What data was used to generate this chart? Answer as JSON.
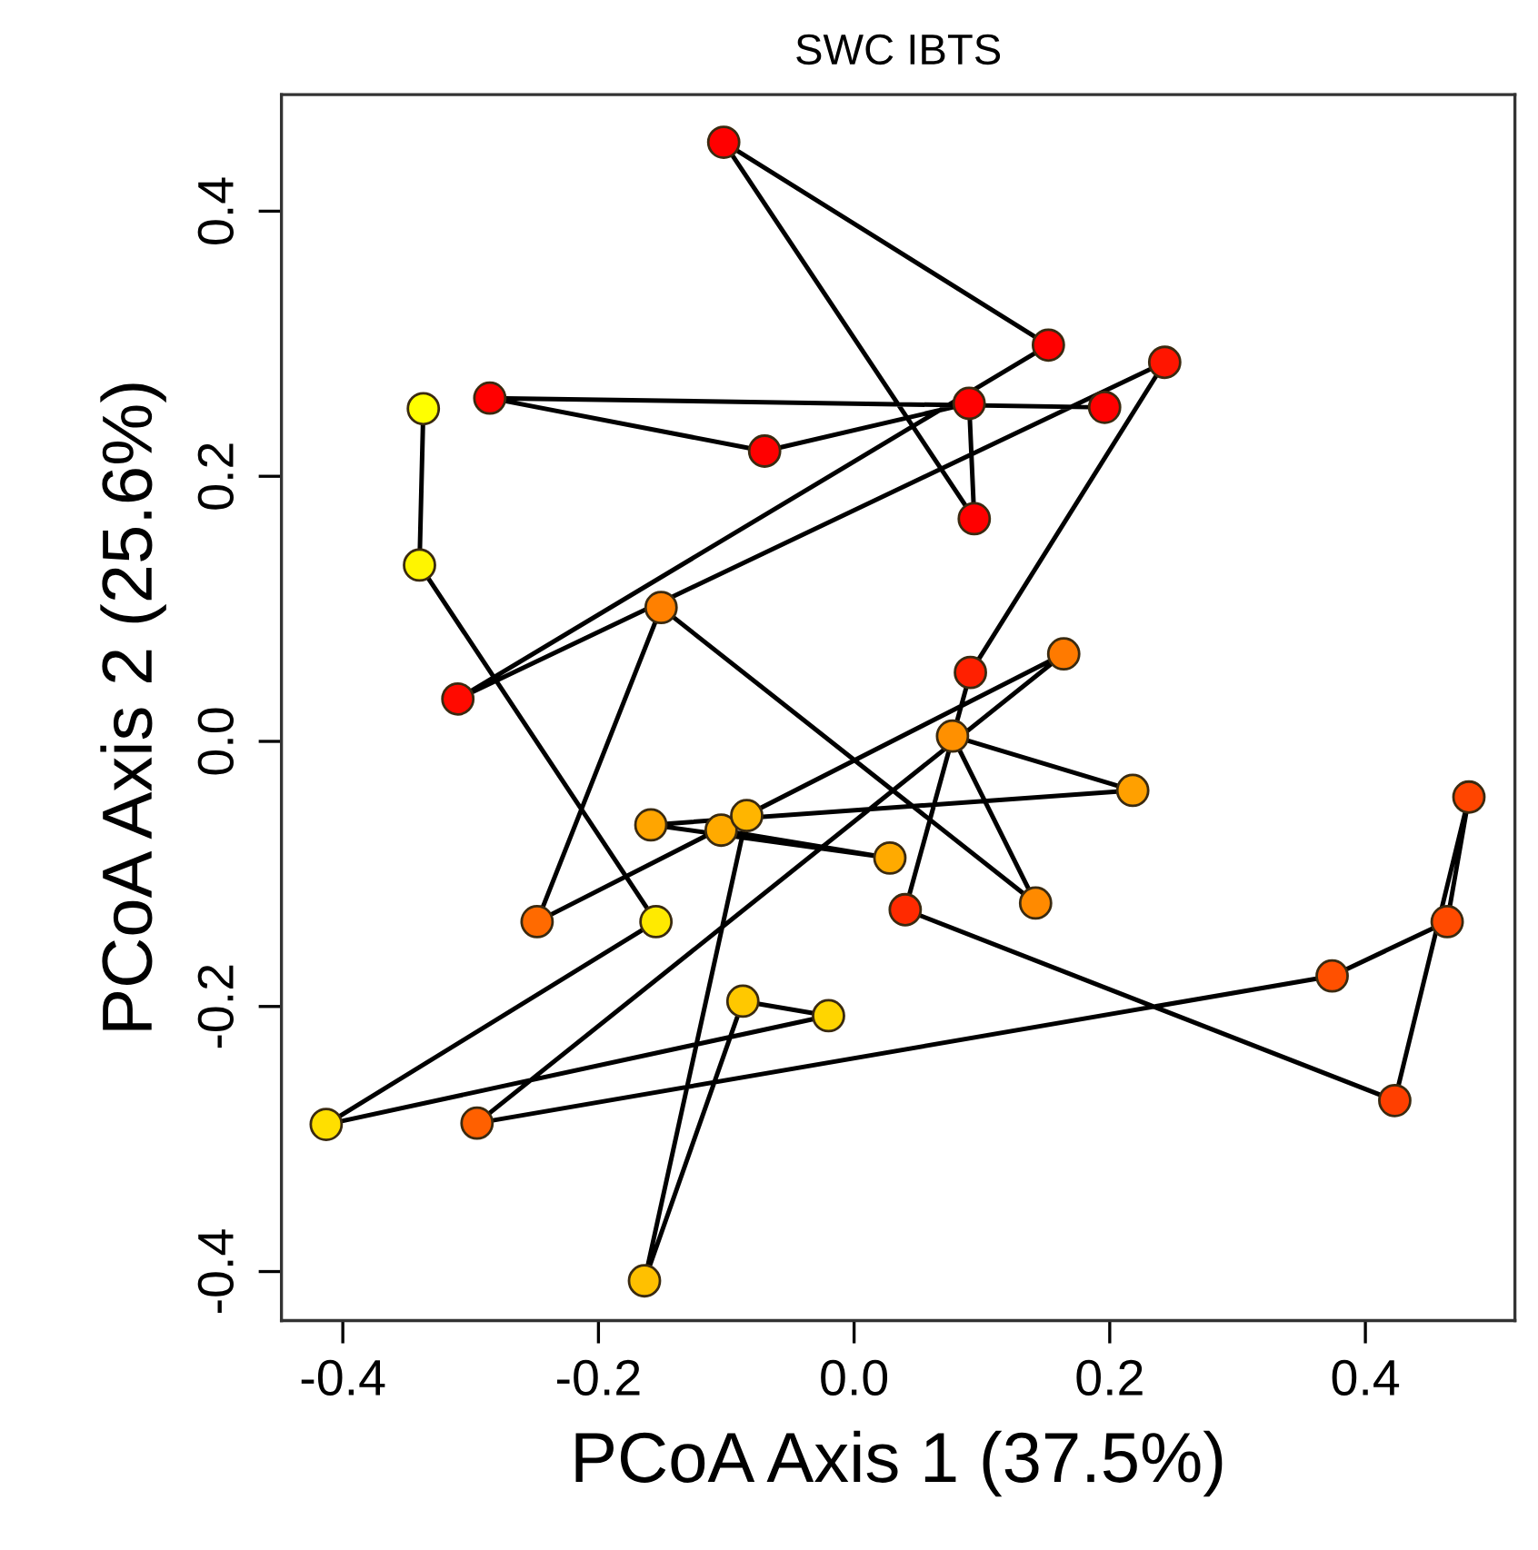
{
  "chart_data": {
    "type": "line",
    "title": "SWC IBTS",
    "xlabel": "PCoA Axis 1 (37.5%)",
    "ylabel": "PCoA Axis 2 (25.6%)",
    "xlim": [
      -0.448,
      0.517
    ],
    "ylim": [
      -0.437,
      0.488
    ],
    "xticks": [
      {
        "value": -0.4,
        "label": "-0.4"
      },
      {
        "value": -0.2,
        "label": "-0.2"
      },
      {
        "value": 0.0,
        "label": "0.0"
      },
      {
        "value": 0.2,
        "label": "0.2"
      },
      {
        "value": 0.4,
        "label": "0.4"
      }
    ],
    "yticks": [
      {
        "value": -0.4,
        "label": "-0.4"
      },
      {
        "value": -0.2,
        "label": "-0.2"
      },
      {
        "value": 0.0,
        "label": "0.0"
      },
      {
        "value": 0.2,
        "label": "0.2"
      },
      {
        "value": 0.4,
        "label": "0.4"
      }
    ],
    "marker": "circle",
    "line_style": "solid",
    "grid": false,
    "legend": false,
    "series": [
      {
        "color": "#000000",
        "x": [
          0.196,
          -0.285,
          -0.07,
          0.09,
          0.094,
          -0.102,
          0.152,
          -0.31,
          0.243,
          0.091,
          0.04,
          0.423,
          0.481,
          0.464,
          0.374,
          -0.295,
          0.164,
          -0.248,
          -0.151,
          0.142,
          0.077,
          0.218,
          -0.159,
          0.028,
          -0.104,
          -0.084,
          -0.164,
          -0.087,
          -0.02,
          -0.413,
          -0.155,
          -0.34,
          -0.337
        ],
        "values": [
          0.252,
          0.259,
          0.219,
          0.255,
          0.168,
          0.452,
          0.299,
          0.032,
          0.286,
          0.052,
          -0.127,
          -0.271,
          -0.042,
          -0.136,
          -0.177,
          -0.288,
          0.066,
          -0.136,
          0.101,
          -0.122,
          0.004,
          -0.037,
          -0.063,
          -0.088,
          -0.067,
          -0.056,
          -0.407,
          -0.196,
          -0.207,
          -0.289,
          -0.136,
          0.133,
          0.251
        ],
        "colors": [
          "#ff0000",
          "#ff0000",
          "#ff0000",
          "#ff0000",
          "#ff0000",
          "#ff0000",
          "#ff0000",
          "#ff0a00",
          "#ff1500",
          "#ff2000",
          "#ff2a00",
          "#ff3f00",
          "#ff4500",
          "#ff4a00",
          "#ff5000",
          "#ff6000",
          "#ff7a00",
          "#ff6a00",
          "#ff8000",
          "#ff8a00",
          "#ff9000",
          "#ffa000",
          "#ffa500",
          "#ffaa00",
          "#ffaa00",
          "#ffb500",
          "#ffc000",
          "#ffc800",
          "#ffd500",
          "#ffdf00",
          "#ffea00",
          "#fff500",
          "#ffff00"
        ]
      }
    ]
  }
}
